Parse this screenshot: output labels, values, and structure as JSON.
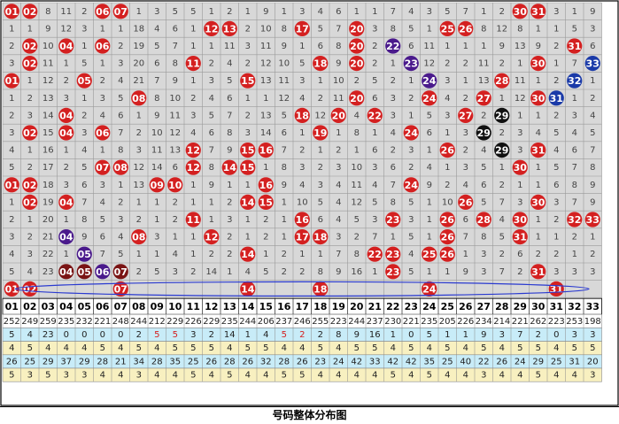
{
  "chart_data": {
    "type": "table",
    "title": "号码整体分布图",
    "columns": [
      "01",
      "02",
      "03",
      "04",
      "05",
      "06",
      "07",
      "08",
      "09",
      "10",
      "11",
      "12",
      "13",
      "14",
      "15",
      "16",
      "17",
      "18",
      "19",
      "20",
      "21",
      "22",
      "23",
      "24",
      "25",
      "26",
      "27",
      "28",
      "29",
      "30",
      "31",
      "32",
      "33"
    ],
    "grid_rows": [
      [
        [
          "h",
          1
        ],
        [
          "h",
          2
        ],
        8,
        11,
        2,
        [
          "h",
          6
        ],
        [
          "h",
          7
        ],
        1,
        3,
        5,
        5,
        1,
        2,
        1,
        9,
        1,
        3,
        4,
        6,
        1,
        1,
        7,
        4,
        3,
        5,
        7,
        1,
        2,
        [
          "h",
          30
        ],
        [
          "h",
          31
        ],
        3,
        1,
        9
      ],
      [
        1,
        1,
        9,
        12,
        3,
        1,
        1,
        18,
        4,
        6,
        1,
        [
          "h",
          12
        ],
        [
          "h",
          13
        ],
        2,
        10,
        8,
        [
          "h",
          17
        ],
        5,
        7,
        [
          "h",
          20
        ],
        3,
        8,
        5,
        1,
        [
          "h",
          25
        ],
        [
          "h",
          26
        ],
        8,
        12,
        8,
        1,
        1,
        5,
        3
      ],
      [
        2,
        [
          "h",
          2
        ],
        10,
        [
          "h",
          4
        ],
        1,
        [
          "h",
          6
        ],
        2,
        19,
        5,
        7,
        1,
        1,
        11,
        3,
        11,
        9,
        1,
        6,
        8,
        [
          "h",
          20
        ],
        2,
        [
          "p",
          22
        ],
        6,
        11,
        1,
        1,
        1,
        9,
        13,
        9,
        2,
        [
          "h",
          31
        ],
        6
      ],
      [
        3,
        [
          "h",
          2
        ],
        11,
        1,
        5,
        1,
        3,
        20,
        6,
        8,
        [
          "h",
          11
        ],
        2,
        4,
        2,
        12,
        10,
        5,
        [
          "h",
          18
        ],
        9,
        [
          "h",
          20
        ],
        2,
        1,
        [
          "p",
          23
        ],
        12,
        2,
        2,
        11,
        2,
        1,
        [
          "h",
          30
        ],
        1,
        7,
        [
          "b",
          33
        ]
      ],
      [
        [
          "h",
          1
        ],
        1,
        12,
        2,
        [
          "h",
          5
        ],
        2,
        4,
        21,
        7,
        9,
        1,
        3,
        5,
        [
          "h",
          15
        ],
        13,
        11,
        3,
        1,
        10,
        2,
        5,
        2,
        1,
        [
          "p",
          24
        ],
        3,
        1,
        13,
        [
          "h",
          28
        ],
        11,
        1,
        2,
        [
          "b",
          32
        ],
        1
      ],
      [
        1,
        2,
        13,
        3,
        1,
        3,
        5,
        [
          "h",
          8
        ],
        8,
        10,
        2,
        4,
        6,
        1,
        1,
        12,
        4,
        2,
        11,
        [
          "h",
          20
        ],
        6,
        3,
        2,
        [
          "h",
          24
        ],
        4,
        2,
        [
          "h",
          27
        ],
        1,
        12,
        [
          "h",
          30
        ],
        [
          "b",
          31
        ],
        1,
        2
      ],
      [
        2,
        3,
        14,
        [
          "h",
          4
        ],
        2,
        4,
        6,
        1,
        9,
        11,
        3,
        5,
        7,
        2,
        13,
        5,
        [
          "h",
          18
        ],
        12,
        [
          "h",
          20
        ],
        4,
        [
          "h",
          22
        ],
        3,
        1,
        5,
        3,
        [
          "h",
          27
        ],
        2,
        [
          "k",
          29
        ],
        1,
        1,
        2,
        3,
        4
      ],
      [
        3,
        [
          "h",
          2
        ],
        15,
        [
          "h",
          4
        ],
        3,
        [
          "h",
          6
        ],
        7,
        2,
        10,
        12,
        4,
        6,
        8,
        3,
        14,
        6,
        1,
        [
          "h",
          19
        ],
        1,
        8,
        1,
        4,
        [
          "h",
          24
        ],
        6,
        1,
        3,
        [
          "k",
          29
        ],
        2,
        3,
        4,
        5,
        4,
        5
      ],
      [
        4,
        1,
        16,
        1,
        4,
        1,
        8,
        3,
        11,
        13,
        [
          "h",
          12
        ],
        7,
        9,
        [
          "h",
          15
        ],
        [
          "h",
          16
        ],
        7,
        2,
        1,
        2,
        1,
        6,
        2,
        3,
        1,
        [
          "h",
          26
        ],
        2,
        4,
        [
          "k",
          29
        ],
        3,
        [
          "h",
          31
        ],
        4,
        6,
        7
      ],
      [
        5,
        2,
        17,
        2,
        5,
        [
          "h",
          7
        ],
        [
          "h",
          8
        ],
        12,
        14,
        6,
        [
          "h",
          12
        ],
        8,
        [
          "h",
          14
        ],
        [
          "h",
          15
        ],
        1,
        8,
        3,
        2,
        3,
        10,
        3,
        6,
        2,
        4,
        1,
        3,
        5,
        1,
        [
          "h",
          30
        ],
        1,
        5,
        7,
        8
      ],
      [
        [
          "h",
          1
        ],
        [
          "h",
          2
        ],
        18,
        3,
        6,
        3,
        1,
        13,
        [
          "h",
          9
        ],
        [
          "h",
          10
        ],
        1,
        9,
        1,
        1,
        [
          "h",
          16
        ],
        9,
        4,
        3,
        4,
        11,
        4,
        7,
        [
          "h",
          24
        ],
        9,
        2,
        4,
        6,
        2,
        1,
        1,
        6,
        8,
        9
      ],
      [
        1,
        [
          "h",
          2
        ],
        19,
        [
          "h",
          4
        ],
        7,
        4,
        2,
        1,
        1,
        2,
        1,
        1,
        2,
        [
          "h",
          14
        ],
        [
          "h",
          15
        ],
        1,
        10,
        5,
        4,
        12,
        5,
        8,
        5,
        1,
        10,
        [
          "h",
          26
        ],
        5,
        7,
        3,
        [
          "h",
          30
        ],
        3,
        7,
        9
      ],
      [
        2,
        1,
        20,
        1,
        8,
        5,
        3,
        2,
        1,
        2,
        [
          "h",
          11
        ],
        1,
        3,
        1,
        2,
        1,
        [
          "h",
          16
        ],
        6,
        4,
        5,
        3,
        [
          "h",
          23
        ],
        3,
        1,
        [
          "h",
          26
        ],
        6,
        [
          "h",
          28
        ],
        4,
        [
          "h",
          30
        ],
        1,
        2,
        [
          "h",
          32
        ],
        [
          "h",
          33
        ]
      ],
      [
        3,
        2,
        21,
        [
          "p",
          4
        ],
        9,
        6,
        4,
        [
          "h",
          8
        ],
        3,
        1,
        1,
        [
          "h",
          12
        ],
        2,
        1,
        2,
        1,
        [
          "h",
          17
        ],
        [
          "h",
          18
        ],
        3,
        2,
        7,
        1,
        5,
        1,
        [
          "h",
          26
        ],
        7,
        8,
        5,
        [
          "h",
          31
        ],
        1,
        1,
        2,
        1
      ],
      [
        4,
        3,
        22,
        1,
        [
          "p",
          5
        ],
        7,
        5,
        1,
        1,
        4,
        1,
        2,
        2,
        [
          "h",
          14
        ],
        1,
        2,
        1,
        1,
        7,
        8,
        [
          "h",
          22
        ],
        [
          "h",
          23
        ],
        4,
        [
          "h",
          25
        ],
        [
          "h",
          26
        ],
        1,
        3,
        2,
        6,
        2,
        2,
        1,
        2
      ],
      [
        5,
        4,
        23,
        [
          "k",
          4
        ],
        [
          "k",
          5
        ],
        [
          "p",
          6
        ],
        [
          "k",
          7
        ],
        2,
        5,
        3,
        2,
        14,
        1,
        4,
        5,
        2,
        2,
        8,
        9,
        16,
        1,
        [
          "h",
          23
        ],
        5,
        1,
        1,
        9,
        3,
        7,
        2,
        [
          "h",
          31
        ],
        3,
        3,
        3
      ],
      [
        [
          "h",
          1
        ],
        [
          "h",
          2
        ],
        0,
        0,
        0,
        0,
        [
          "h",
          7
        ],
        0,
        0,
        0,
        0,
        0,
        0,
        [
          "h",
          14
        ],
        0,
        0,
        0,
        [
          "h",
          18
        ],
        0,
        0,
        0,
        0,
        0,
        [
          "h",
          24
        ],
        0,
        0,
        0,
        0,
        0,
        0,
        [
          "h",
          31
        ],
        0,
        0
      ]
    ],
    "stats_rows": [
      [
        252,
        249,
        259,
        235,
        232,
        221,
        248,
        244,
        212,
        229,
        226,
        229,
        235,
        244,
        206,
        237,
        246,
        255,
        223,
        244,
        237,
        230,
        221,
        235,
        205,
        226,
        234,
        214,
        221,
        262,
        223,
        253,
        198
      ],
      [
        5,
        4,
        23,
        0,
        0,
        0,
        0,
        2,
        5,
        5,
        3,
        2,
        14,
        1,
        4,
        5,
        2,
        2,
        8,
        9,
        16,
        1,
        0,
        5,
        1,
        1,
        9,
        3,
        7,
        2,
        0,
        3,
        3
      ],
      [
        4,
        5,
        4,
        4,
        4,
        5,
        4,
        5,
        4,
        5,
        5,
        5,
        4,
        5,
        5,
        4,
        4,
        5,
        4,
        5,
        5,
        4,
        5,
        4,
        5,
        4,
        5,
        4,
        5,
        5,
        4,
        5,
        5
      ],
      [
        26,
        25,
        29,
        37,
        29,
        28,
        21,
        34,
        28,
        35,
        25,
        26,
        28,
        26,
        32,
        28,
        26,
        23,
        24,
        42,
        33,
        42,
        42,
        35,
        25,
        40,
        22,
        26,
        24,
        29,
        25,
        31,
        20
      ],
      [
        5,
        3,
        5,
        3,
        3,
        4,
        4,
        3,
        4,
        4,
        5,
        4,
        5,
        4,
        4,
        5,
        5,
        4,
        4,
        4,
        4,
        5,
        4,
        5,
        4,
        4,
        3,
        4,
        4,
        5,
        4,
        4,
        3
      ]
    ],
    "colors": {
      "hit_red": "#d42020",
      "hit_purple": "#4a1a8c",
      "hit_blue": "#1a3aa8",
      "hit_black": "#111111",
      "hit_darkred": "#7a1414",
      "cell_bg": "#d8d8d8",
      "stats_bg": [
        "#ffffff",
        "#c8ecf8",
        "#f8f0c0",
        "#c8ecf8",
        "#f8f0c0"
      ]
    }
  }
}
